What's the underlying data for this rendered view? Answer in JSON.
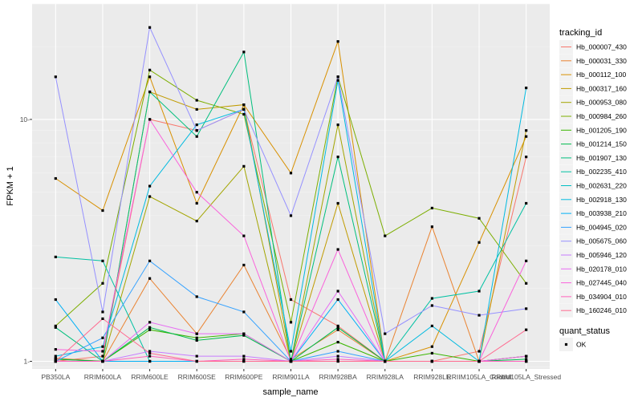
{
  "chart_data": {
    "type": "line",
    "xlabel": "sample_name",
    "ylabel": "FPKM + 1",
    "y_scale": "log10",
    "ylim": [
      0.93,
      30
    ],
    "y_ticks": [
      1,
      10
    ],
    "y_tick_labels": [
      "1-",
      "10-"
    ],
    "grid": true,
    "legend_position": "right",
    "categories": [
      "PB350LA",
      "RRIM600LA",
      "RRIM600LE",
      "RRIM600SE",
      "RRIM600PE",
      "RRIM901LA",
      "RRIM928BA",
      "RRIM928LA",
      "RRIM928LE",
      "RRIM105LA_Control",
      "RRIM105LA_Stressed"
    ],
    "category_labels": [
      "PB350LA",
      "RRIM600LA",
      "RRIM600LE",
      "RRIM600SE",
      "RRIM600PE",
      "RRIM901LA",
      "RRIM928BA",
      "RRIM928LA",
      "RRIM928LE",
      "RRIIM105LA_Control",
      "RRIIM105LA_Stressed"
    ],
    "legend_title": "tracking_id",
    "series": [
      {
        "name": "Hb_000007_430",
        "color": "#F8766D",
        "values": [
          1.0,
          1.05,
          10.0,
          9.0,
          11.0,
          1.8,
          1.4,
          1.0,
          1.0,
          1.1,
          7.0
        ]
      },
      {
        "name": "Hb_000031_330",
        "color": "#EA8331",
        "values": [
          1.03,
          1.0,
          2.2,
          1.3,
          2.5,
          1.02,
          1.35,
          1.0,
          3.6,
          1.0,
          1.05
        ]
      },
      {
        "name": "Hb_000112_100",
        "color": "#D89000",
        "values": [
          5.7,
          4.2,
          15.0,
          4.5,
          11.5,
          6.0,
          21.0,
          1.0,
          1.15,
          3.1,
          8.5
        ]
      },
      {
        "name": "Hb_000317_160",
        "color": "#C09B00",
        "values": [
          1.0,
          1.0,
          13.0,
          11.0,
          11.5,
          1.0,
          4.5,
          1.0,
          1.0,
          1.0,
          9.0
        ]
      },
      {
        "name": "Hb_000953_080",
        "color": "#A3A500",
        "values": [
          1.0,
          1.0,
          4.8,
          3.8,
          6.4,
          1.0,
          9.5,
          1.0,
          1.0,
          1.0,
          1.0
        ]
      },
      {
        "name": "Hb_000984_260",
        "color": "#7CAE00",
        "values": [
          1.4,
          2.1,
          16.0,
          12.0,
          10.5,
          1.45,
          15.0,
          3.3,
          4.3,
          3.9,
          2.1
        ]
      },
      {
        "name": "Hb_001205_190",
        "color": "#39B600",
        "values": [
          1.02,
          1.0,
          1.35,
          1.25,
          1.3,
          1.0,
          1.2,
          1.0,
          1.08,
          1.0,
          1.05
        ]
      },
      {
        "name": "Hb_001214_150",
        "color": "#00BB4E",
        "values": [
          1.02,
          1.0,
          1.38,
          1.22,
          1.28,
          1.0,
          1.38,
          1.0,
          1.0,
          1.0,
          1.02
        ]
      },
      {
        "name": "Hb_001907_130",
        "color": "#00BF7D",
        "values": [
          1.38,
          1.0,
          13.0,
          8.5,
          19.0,
          1.0,
          7.0,
          1.0,
          1.0,
          1.0,
          1.0
        ]
      },
      {
        "name": "Hb_002235_410",
        "color": "#00C1A3",
        "values": [
          2.7,
          2.6,
          1.0,
          1.0,
          1.0,
          1.0,
          1.0,
          1.0,
          1.82,
          1.95,
          4.5
        ]
      },
      {
        "name": "Hb_002631_220",
        "color": "#00BFC4",
        "values": [
          1.0,
          1.0,
          1.0,
          1.0,
          1.0,
          1.0,
          1.0,
          1.0,
          1.0,
          1.0,
          1.0
        ]
      },
      {
        "name": "Hb_002918_130",
        "color": "#00BAE0",
        "values": [
          1.05,
          1.15,
          5.3,
          9.5,
          11.0,
          1.1,
          14.5,
          1.0,
          1.4,
          1.0,
          13.5
        ]
      },
      {
        "name": "Hb_003938_210",
        "color": "#00B0F6",
        "values": [
          1.8,
          1.0,
          1.0,
          1.0,
          1.0,
          1.0,
          1.8,
          1.0,
          1.0,
          1.0,
          1.0
        ]
      },
      {
        "name": "Hb_004945_020",
        "color": "#35A2FF",
        "values": [
          1.0,
          1.25,
          2.6,
          1.85,
          1.6,
          1.0,
          1.1,
          1.0,
          1.0,
          1.0,
          1.0
        ]
      },
      {
        "name": "Hb_005675_060",
        "color": "#9590FF",
        "values": [
          15.0,
          1.6,
          24.0,
          9.0,
          11.0,
          4.0,
          15.0,
          1.3,
          1.7,
          1.55,
          1.65
        ]
      },
      {
        "name": "Hb_005946_120",
        "color": "#C77CFF",
        "values": [
          1.0,
          1.0,
          1.1,
          1.05,
          1.05,
          1.0,
          1.05,
          1.0,
          1.0,
          1.0,
          1.0
        ]
      },
      {
        "name": "Hb_020178_010",
        "color": "#E76BF3",
        "values": [
          1.0,
          1.0,
          1.45,
          1.3,
          1.3,
          1.0,
          1.95,
          1.0,
          1.0,
          1.0,
          1.05
        ]
      },
      {
        "name": "Hb_027445_040",
        "color": "#FA62DB",
        "values": [
          1.12,
          1.1,
          10.0,
          5.0,
          3.3,
          1.0,
          2.9,
          1.0,
          1.0,
          1.0,
          2.6
        ]
      },
      {
        "name": "Hb_034904_010",
        "color": "#FF62BC",
        "values": [
          1.0,
          1.0,
          1.05,
          1.0,
          1.02,
          1.0,
          1.02,
          1.0,
          1.0,
          1.0,
          1.0
        ]
      },
      {
        "name": "Hb_160246_010",
        "color": "#FF6C91",
        "values": [
          1.0,
          1.5,
          1.08,
          1.0,
          1.0,
          1.0,
          1.0,
          1.0,
          1.0,
          1.0,
          1.35
        ]
      }
    ],
    "shape_legend_title": "quant_status",
    "shape_legend_items": [
      "OK"
    ]
  }
}
